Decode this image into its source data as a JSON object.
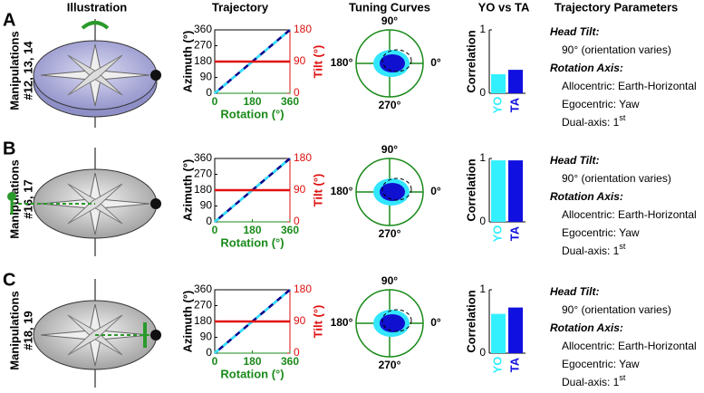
{
  "headers": [
    "Illustration",
    "Trajectory",
    "Tuning Curves",
    "YO vs TA",
    "Trajectory Parameters"
  ],
  "rows": [
    {
      "letter": "A",
      "manipulation": [
        "Manipulations",
        "#12, 13, 14"
      ],
      "correlation": [
        0.3,
        0.37
      ]
    },
    {
      "letter": "B",
      "manipulation": [
        "Manipulations",
        "#16, 17"
      ],
      "correlation": [
        0.97,
        0.97
      ]
    },
    {
      "letter": "C",
      "manipulation": [
        "Manipulations",
        "#18, 19"
      ],
      "correlation": [
        0.62,
        0.72
      ]
    }
  ],
  "trajectory": {
    "xlabel": "Rotation (°)",
    "ylabel": "Azimuth (°)",
    "y2label": "Tilt (°)",
    "xlim": [
      0,
      360
    ],
    "xticks": [
      0,
      180,
      360
    ],
    "ylim": [
      0,
      360
    ],
    "yticks": [
      0,
      90,
      180,
      270,
      360
    ],
    "y2lim": [
      0,
      180
    ],
    "y2ticks": [
      0,
      90,
      180
    ],
    "x_color": "#1a8a1a",
    "y2_color": "#e01010",
    "series": [
      {
        "x": [
          0,
          360
        ],
        "values": [
          0,
          360
        ],
        "color": "#00008b",
        "dash_color": "#33e6ff"
      },
      {
        "x": [
          0,
          360
        ],
        "values": [
          90,
          90
        ],
        "color": "#e01010",
        "axis": "y2"
      }
    ]
  },
  "tuning": {
    "labels": {
      "top": "90°",
      "right": "0°",
      "left": "180°",
      "bottom": "270°"
    },
    "color": "#1a8a1a"
  },
  "bars": {
    "ylabel": "Correlation",
    "categories": [
      "YO",
      "TA"
    ],
    "colors": [
      "#33f0ff",
      "#1010e0"
    ],
    "ylim": [
      0,
      1
    ],
    "yticks": [
      0,
      1
    ]
  },
  "parameters": [
    {
      "text": "Head Tilt:",
      "style": "heading"
    },
    {
      "text": "90° (orientation varies)"
    },
    {
      "text": "Rotation Axis:",
      "style": "heading"
    },
    {
      "text": "Allocentric: Earth-Horizontal"
    },
    {
      "text": "Egocentric: Yaw"
    },
    {
      "text": "Dual-axis: 1",
      "sup": "st"
    }
  ]
}
